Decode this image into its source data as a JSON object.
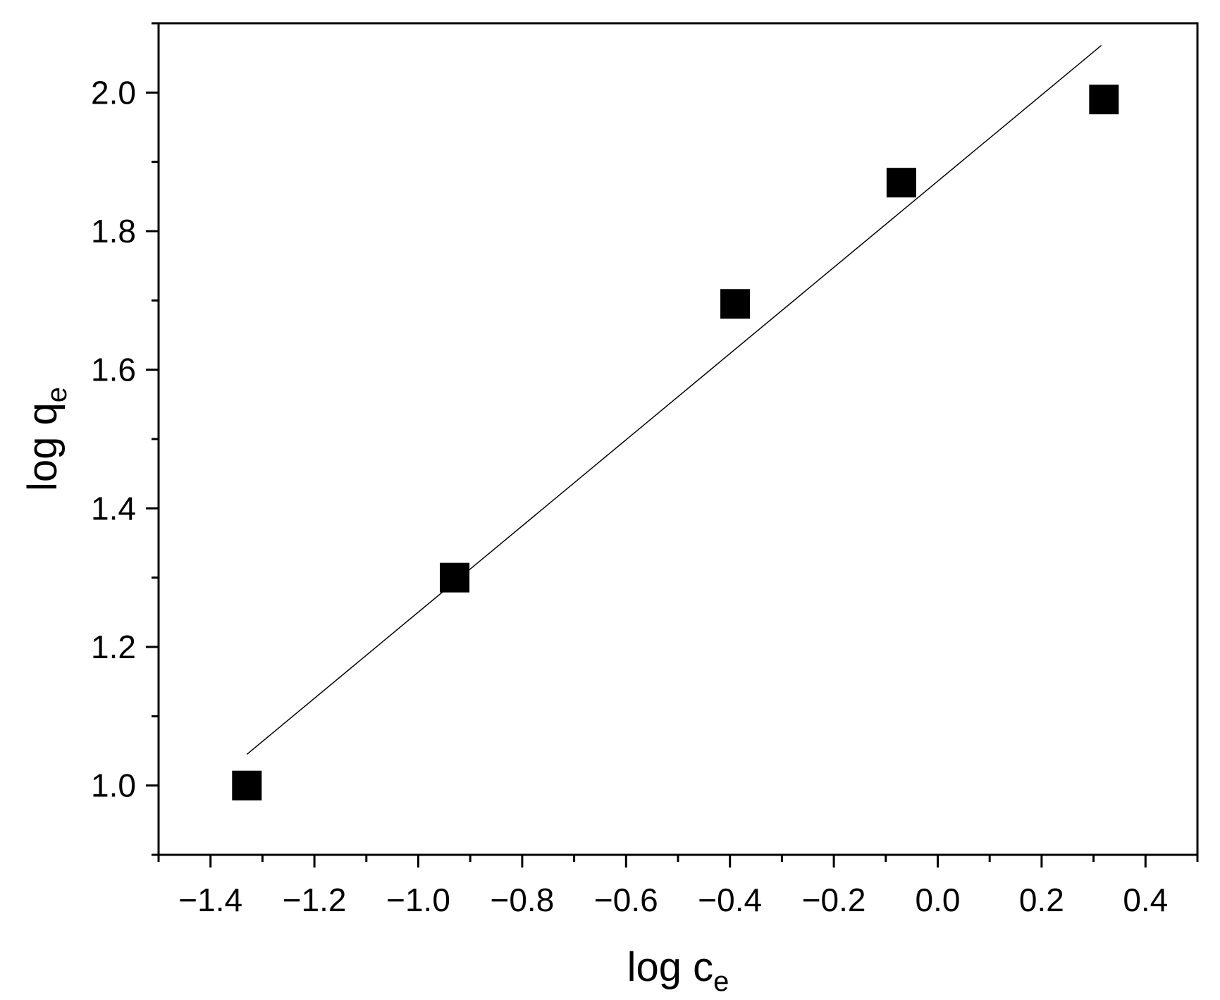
{
  "chart_data": {
    "type": "scatter",
    "title": "",
    "xlabel": "log c",
    "xlabel_sub": "e",
    "ylabel": "log q",
    "ylabel_sub": "e",
    "xlim": [
      -1.5,
      0.5
    ],
    "ylim": [
      0.9,
      2.1
    ],
    "x_ticks": [
      -1.4,
      -1.2,
      -1.0,
      -0.8,
      -0.6,
      -0.4,
      -0.2,
      0.0,
      0.2,
      0.4
    ],
    "x_tick_labels": [
      "−1.4",
      "−1.2",
      "−1.0",
      "−0.8",
      "−0.6",
      "−0.4",
      "−0.2",
      "0.0",
      "0.2",
      "0.4"
    ],
    "y_ticks": [
      1.0,
      1.2,
      1.4,
      1.6,
      1.8,
      2.0
    ],
    "y_tick_labels": [
      "1.0",
      "1.2",
      "1.4",
      "1.6",
      "1.8",
      "2.0"
    ],
    "grid": false,
    "marker": "square",
    "marker_color": "#000000",
    "line_color": "#000000",
    "series": [
      {
        "x": [
          -1.33,
          -0.93,
          -0.39,
          -0.07,
          0.32
        ],
        "y": [
          1.0,
          1.3,
          1.695,
          1.87,
          1.99
        ]
      }
    ],
    "fit_line": {
      "x": [
        -1.33,
        0.315
      ],
      "y": [
        1.045,
        2.068
      ]
    }
  }
}
